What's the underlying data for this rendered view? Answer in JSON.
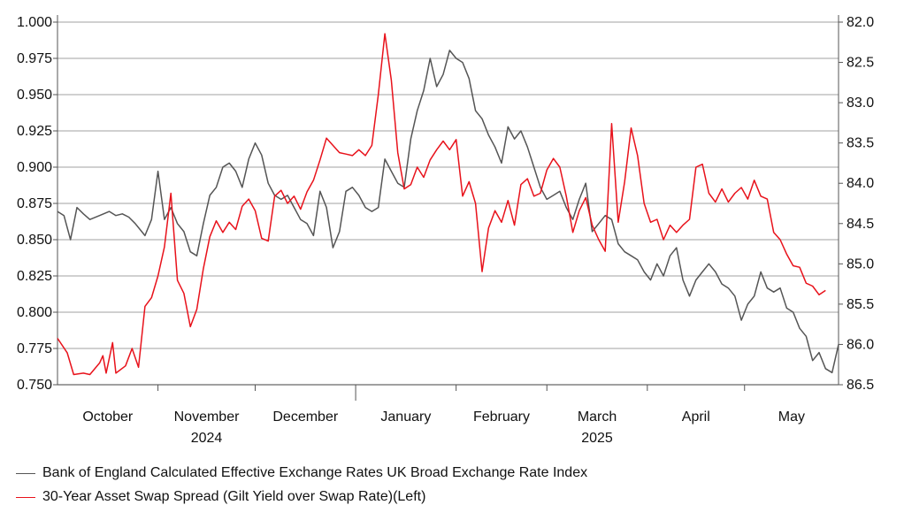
{
  "chart_data": {
    "type": "line",
    "xlabel": "",
    "ylabel": "",
    "x_axis": {
      "months": [
        "October",
        "November",
        "December",
        "January",
        "February",
        "March",
        "April",
        "May"
      ],
      "years": [
        {
          "label": "2024",
          "under": "November"
        },
        {
          "label": "2025",
          "under": "March"
        }
      ],
      "range": [
        "2024-10-01",
        "2025-05-30"
      ]
    },
    "left_axis": {
      "range": [
        0.75,
        1.0
      ],
      "ticks": [
        1.0,
        0.975,
        0.95,
        0.925,
        0.9,
        0.875,
        0.85,
        0.825,
        0.8,
        0.775,
        0.75
      ],
      "tick_labels": [
        "1.000",
        "0.975",
        "0.950",
        "0.925",
        "0.900",
        "0.875",
        "0.850",
        "0.825",
        "0.800",
        "0.775",
        "0.750"
      ]
    },
    "right_axis": {
      "range": [
        82.0,
        86.5
      ],
      "inverted": true,
      "ticks": [
        82.0,
        82.5,
        83.0,
        83.5,
        84.0,
        84.5,
        85.0,
        85.5,
        86.0,
        86.5
      ],
      "tick_labels": [
        "82.0",
        "82.5",
        "83.0",
        "83.5",
        "84.0",
        "84.5",
        "85.0",
        "85.5",
        "86.0",
        "86.5"
      ]
    },
    "grid": true,
    "legend_position": "bottom-left",
    "series": [
      {
        "name": "Bank of England Calculated Effective Exchange Rates UK Broad Exchange Rate Index",
        "axis": "right",
        "color": "#555555",
        "points": [
          [
            "2024-10-01",
            84.35
          ],
          [
            "2024-10-03",
            84.4
          ],
          [
            "2024-10-05",
            84.7
          ],
          [
            "2024-10-07",
            84.3
          ],
          [
            "2024-10-09",
            84.38
          ],
          [
            "2024-10-11",
            84.45
          ],
          [
            "2024-10-14",
            84.4
          ],
          [
            "2024-10-17",
            84.35
          ],
          [
            "2024-10-19",
            84.4
          ],
          [
            "2024-10-21",
            84.38
          ],
          [
            "2024-10-23",
            84.42
          ],
          [
            "2024-10-25",
            84.5
          ],
          [
            "2024-10-28",
            84.65
          ],
          [
            "2024-10-30",
            84.45
          ],
          [
            "2024-11-01",
            83.85
          ],
          [
            "2024-11-03",
            84.45
          ],
          [
            "2024-11-05",
            84.3
          ],
          [
            "2024-11-07",
            84.5
          ],
          [
            "2024-11-09",
            84.6
          ],
          [
            "2024-11-11",
            84.85
          ],
          [
            "2024-11-13",
            84.9
          ],
          [
            "2024-11-15",
            84.5
          ],
          [
            "2024-11-17",
            84.15
          ],
          [
            "2024-11-19",
            84.05
          ],
          [
            "2024-11-21",
            83.8
          ],
          [
            "2024-11-23",
            83.75
          ],
          [
            "2024-11-25",
            83.85
          ],
          [
            "2024-11-27",
            84.05
          ],
          [
            "2024-11-29",
            83.7
          ],
          [
            "2024-12-01",
            83.5
          ],
          [
            "2024-12-03",
            83.65
          ],
          [
            "2024-12-05",
            84.0
          ],
          [
            "2024-12-07",
            84.15
          ],
          [
            "2024-12-09",
            84.2
          ],
          [
            "2024-12-11",
            84.15
          ],
          [
            "2024-12-13",
            84.3
          ],
          [
            "2024-12-15",
            84.45
          ],
          [
            "2024-12-17",
            84.5
          ],
          [
            "2024-12-19",
            84.65
          ],
          [
            "2024-12-21",
            84.1
          ],
          [
            "2024-12-23",
            84.3
          ],
          [
            "2024-12-25",
            84.8
          ],
          [
            "2024-12-27",
            84.6
          ],
          [
            "2024-12-29",
            84.1
          ],
          [
            "2024-12-31",
            84.05
          ],
          [
            "2025-01-02",
            84.15
          ],
          [
            "2025-01-04",
            84.3
          ],
          [
            "2025-01-06",
            84.35
          ],
          [
            "2025-01-08",
            84.3
          ],
          [
            "2025-01-10",
            83.7
          ],
          [
            "2025-01-12",
            83.85
          ],
          [
            "2025-01-14",
            84.0
          ],
          [
            "2025-01-16",
            84.05
          ],
          [
            "2025-01-18",
            83.45
          ],
          [
            "2025-01-20",
            83.1
          ],
          [
            "2025-01-22",
            82.85
          ],
          [
            "2025-01-24",
            82.45
          ],
          [
            "2025-01-26",
            82.8
          ],
          [
            "2025-01-28",
            82.65
          ],
          [
            "2025-01-30",
            82.35
          ],
          [
            "2025-02-01",
            82.45
          ],
          [
            "2025-02-03",
            82.5
          ],
          [
            "2025-02-05",
            82.7
          ],
          [
            "2025-02-07",
            83.1
          ],
          [
            "2025-02-09",
            83.2
          ],
          [
            "2025-02-11",
            83.4
          ],
          [
            "2025-02-13",
            83.55
          ],
          [
            "2025-02-15",
            83.75
          ],
          [
            "2025-02-17",
            83.3
          ],
          [
            "2025-02-19",
            83.45
          ],
          [
            "2025-02-21",
            83.35
          ],
          [
            "2025-02-23",
            83.55
          ],
          [
            "2025-02-25",
            83.8
          ],
          [
            "2025-02-27",
            84.05
          ],
          [
            "2025-03-01",
            84.2
          ],
          [
            "2025-03-03",
            84.15
          ],
          [
            "2025-03-05",
            84.1
          ],
          [
            "2025-03-07",
            84.3
          ],
          [
            "2025-03-09",
            84.45
          ],
          [
            "2025-03-11",
            84.2
          ],
          [
            "2025-03-13",
            84.0
          ],
          [
            "2025-03-15",
            84.6
          ],
          [
            "2025-03-17",
            84.5
          ],
          [
            "2025-03-19",
            84.4
          ],
          [
            "2025-03-21",
            84.45
          ],
          [
            "2025-03-23",
            84.75
          ],
          [
            "2025-03-25",
            84.85
          ],
          [
            "2025-03-27",
            84.9
          ],
          [
            "2025-03-29",
            84.95
          ],
          [
            "2025-03-31",
            85.1
          ],
          [
            "2025-04-02",
            85.2
          ],
          [
            "2025-04-04",
            85.0
          ],
          [
            "2025-04-06",
            85.15
          ],
          [
            "2025-04-08",
            84.9
          ],
          [
            "2025-04-10",
            84.8
          ],
          [
            "2025-04-12",
            85.2
          ],
          [
            "2025-04-14",
            85.4
          ],
          [
            "2025-04-16",
            85.2
          ],
          [
            "2025-04-18",
            85.1
          ],
          [
            "2025-04-20",
            85.0
          ],
          [
            "2025-04-22",
            85.1
          ],
          [
            "2025-04-24",
            85.25
          ],
          [
            "2025-04-26",
            85.3
          ],
          [
            "2025-04-28",
            85.4
          ],
          [
            "2025-04-30",
            85.7
          ],
          [
            "2025-05-02",
            85.5
          ],
          [
            "2025-05-04",
            85.4
          ],
          [
            "2025-05-06",
            85.1
          ],
          [
            "2025-05-08",
            85.3
          ],
          [
            "2025-05-10",
            85.35
          ],
          [
            "2025-05-12",
            85.3
          ],
          [
            "2025-05-14",
            85.55
          ],
          [
            "2025-05-16",
            85.6
          ],
          [
            "2025-05-18",
            85.8
          ],
          [
            "2025-05-20",
            85.9
          ],
          [
            "2025-05-22",
            86.2
          ],
          [
            "2025-05-24",
            86.1
          ],
          [
            "2025-05-26",
            86.3
          ],
          [
            "2025-05-28",
            86.35
          ],
          [
            "2025-05-30",
            86.0
          ]
        ]
      },
      {
        "name": "30-Year Asset Swap Spread (Gilt Yield over Swap Rate)(Left)",
        "axis": "left",
        "color": "#e8121b",
        "points": [
          [
            "2024-10-01",
            0.782
          ],
          [
            "2024-10-04",
            0.772
          ],
          [
            "2024-10-06",
            0.757
          ],
          [
            "2024-10-09",
            0.758
          ],
          [
            "2024-10-11",
            0.757
          ],
          [
            "2024-10-14",
            0.765
          ],
          [
            "2024-10-15",
            0.77
          ],
          [
            "2024-10-16",
            0.758
          ],
          [
            "2024-10-18",
            0.779
          ],
          [
            "2024-10-19",
            0.758
          ],
          [
            "2024-10-22",
            0.763
          ],
          [
            "2024-10-24",
            0.775
          ],
          [
            "2024-10-26",
            0.762
          ],
          [
            "2024-10-28",
            0.804
          ],
          [
            "2024-10-30",
            0.81
          ],
          [
            "2024-11-01",
            0.825
          ],
          [
            "2024-11-03",
            0.845
          ],
          [
            "2024-11-05",
            0.882
          ],
          [
            "2024-11-07",
            0.822
          ],
          [
            "2024-11-09",
            0.813
          ],
          [
            "2024-11-11",
            0.79
          ],
          [
            "2024-11-13",
            0.802
          ],
          [
            "2024-11-15",
            0.83
          ],
          [
            "2024-11-17",
            0.852
          ],
          [
            "2024-11-19",
            0.863
          ],
          [
            "2024-11-21",
            0.855
          ],
          [
            "2024-11-23",
            0.862
          ],
          [
            "2024-11-25",
            0.857
          ],
          [
            "2024-11-27",
            0.873
          ],
          [
            "2024-11-29",
            0.878
          ],
          [
            "2024-12-01",
            0.87
          ],
          [
            "2024-12-03",
            0.851
          ],
          [
            "2024-12-05",
            0.849
          ],
          [
            "2024-12-07",
            0.88
          ],
          [
            "2024-12-09",
            0.884
          ],
          [
            "2024-12-11",
            0.875
          ],
          [
            "2024-12-13",
            0.88
          ],
          [
            "2024-12-15",
            0.871
          ],
          [
            "2024-12-17",
            0.883
          ],
          [
            "2024-12-19",
            0.891
          ],
          [
            "2024-12-21",
            0.905
          ],
          [
            "2024-12-23",
            0.92
          ],
          [
            "2024-12-25",
            0.915
          ],
          [
            "2024-12-27",
            0.91
          ],
          [
            "2024-12-29",
            0.909
          ],
          [
            "2024-12-31",
            0.908
          ],
          [
            "2025-01-02",
            0.912
          ],
          [
            "2025-01-04",
            0.908
          ],
          [
            "2025-01-06",
            0.915
          ],
          [
            "2025-01-08",
            0.95
          ],
          [
            "2025-01-10",
            0.992
          ],
          [
            "2025-01-12",
            0.96
          ],
          [
            "2025-01-14",
            0.91
          ],
          [
            "2025-01-16",
            0.885
          ],
          [
            "2025-01-18",
            0.888
          ],
          [
            "2025-01-20",
            0.9
          ],
          [
            "2025-01-22",
            0.893
          ],
          [
            "2025-01-24",
            0.905
          ],
          [
            "2025-01-26",
            0.912
          ],
          [
            "2025-01-28",
            0.918
          ],
          [
            "2025-01-30",
            0.912
          ],
          [
            "2025-02-01",
            0.919
          ],
          [
            "2025-02-03",
            0.88
          ],
          [
            "2025-02-05",
            0.89
          ],
          [
            "2025-02-07",
            0.875
          ],
          [
            "2025-02-09",
            0.828
          ],
          [
            "2025-02-11",
            0.858
          ],
          [
            "2025-02-13",
            0.87
          ],
          [
            "2025-02-15",
            0.862
          ],
          [
            "2025-02-17",
            0.877
          ],
          [
            "2025-02-19",
            0.86
          ],
          [
            "2025-02-21",
            0.888
          ],
          [
            "2025-02-23",
            0.892
          ],
          [
            "2025-02-25",
            0.88
          ],
          [
            "2025-02-27",
            0.882
          ],
          [
            "2025-03-01",
            0.898
          ],
          [
            "2025-03-03",
            0.906
          ],
          [
            "2025-03-05",
            0.9
          ],
          [
            "2025-03-07",
            0.88
          ],
          [
            "2025-03-09",
            0.855
          ],
          [
            "2025-03-11",
            0.87
          ],
          [
            "2025-03-13",
            0.879
          ],
          [
            "2025-03-15",
            0.86
          ],
          [
            "2025-03-17",
            0.85
          ],
          [
            "2025-03-19",
            0.842
          ],
          [
            "2025-03-21",
            0.93
          ],
          [
            "2025-03-23",
            0.862
          ],
          [
            "2025-03-25",
            0.89
          ],
          [
            "2025-03-27",
            0.927
          ],
          [
            "2025-03-29",
            0.908
          ],
          [
            "2025-03-31",
            0.875
          ],
          [
            "2025-04-02",
            0.862
          ],
          [
            "2025-04-04",
            0.864
          ],
          [
            "2025-04-06",
            0.85
          ],
          [
            "2025-04-08",
            0.86
          ],
          [
            "2025-04-10",
            0.855
          ],
          [
            "2025-04-12",
            0.86
          ],
          [
            "2025-04-14",
            0.864
          ],
          [
            "2025-04-16",
            0.9
          ],
          [
            "2025-04-18",
            0.902
          ],
          [
            "2025-04-20",
            0.882
          ],
          [
            "2025-04-22",
            0.876
          ],
          [
            "2025-04-24",
            0.885
          ],
          [
            "2025-04-26",
            0.876
          ],
          [
            "2025-04-28",
            0.882
          ],
          [
            "2025-04-30",
            0.886
          ],
          [
            "2025-05-02",
            0.878
          ],
          [
            "2025-05-04",
            0.891
          ],
          [
            "2025-05-06",
            0.88
          ],
          [
            "2025-05-08",
            0.878
          ],
          [
            "2025-05-10",
            0.855
          ],
          [
            "2025-05-12",
            0.85
          ],
          [
            "2025-05-14",
            0.84
          ],
          [
            "2025-05-16",
            0.832
          ],
          [
            "2025-05-18",
            0.831
          ],
          [
            "2025-05-20",
            0.82
          ],
          [
            "2025-05-22",
            0.818
          ],
          [
            "2025-05-24",
            0.812
          ],
          [
            "2025-05-26",
            0.815
          ]
        ]
      }
    ]
  },
  "legend": [
    {
      "label": "Bank of England Calculated Effective Exchange Rates UK Broad Exchange Rate Index",
      "color": "#555555"
    },
    {
      "label": "30-Year Asset Swap Spread (Gilt Yield over Swap Rate)(Left)",
      "color": "#e8121b"
    }
  ],
  "colors": {
    "grid": "#b5b5b5",
    "axis": "#555555"
  }
}
